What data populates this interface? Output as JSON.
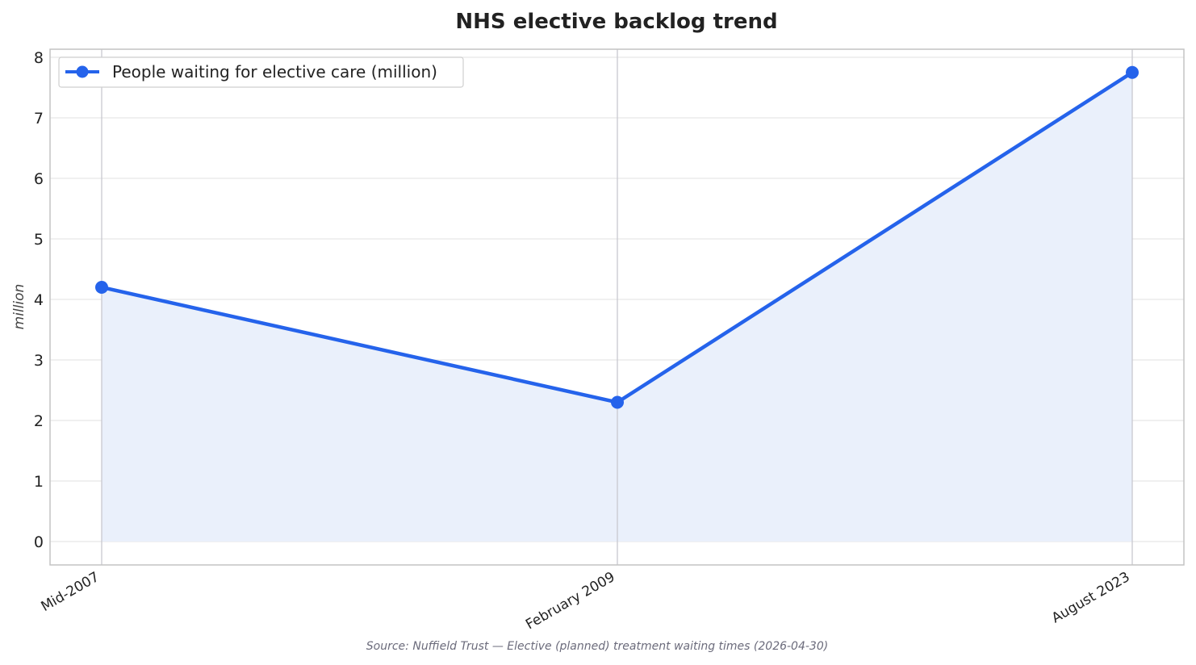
{
  "chart_data": {
    "type": "line",
    "title": "NHS elective backlog trend",
    "xlabel": "",
    "ylabel": "million",
    "categories": [
      "Mid-2007",
      "February 2009",
      "August 2023"
    ],
    "series": [
      {
        "name": "People waiting for elective care (million)",
        "values": [
          4.2,
          2.3,
          7.75
        ]
      }
    ],
    "ylim": [
      -0.38,
      8.15
    ],
    "yticks": [
      0,
      1,
      2,
      3,
      4,
      5,
      6,
      7,
      8
    ],
    "grid": true,
    "legend_position": "top-left",
    "area_fill": true,
    "colors": {
      "line": "#2563eb",
      "fill": "#eaf0fb",
      "grid": "#e6e6e6",
      "vline": "#c8c8d0"
    }
  },
  "source_note": "Source: Nuffield Trust — Elective (planned) treatment waiting times (2026-04-30)"
}
